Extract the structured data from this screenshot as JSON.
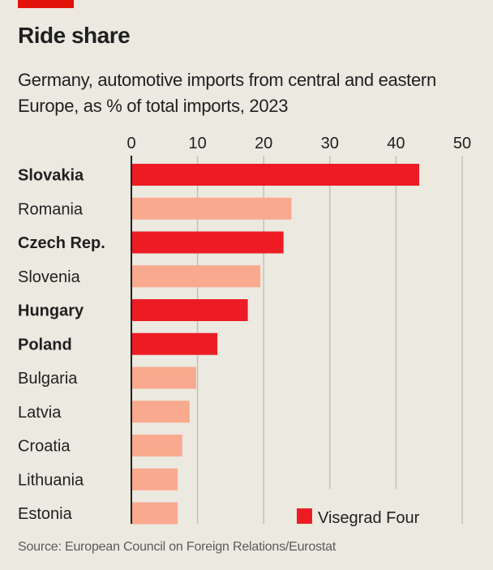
{
  "header": {
    "title": "Ride share",
    "subtitle": "Germany, automotive imports from central and eastern Europe, as % of total imports, 2023"
  },
  "footer": {
    "source": "Source: European Council on Foreign Relations/Eurostat"
  },
  "colors": {
    "accent_bar": "#e3120b",
    "highlight": "#ed1c24",
    "other": "#f9a98e",
    "background": "#ebe9e0",
    "grid": "#c3c1b8",
    "axis": "#1f1f1f"
  },
  "chart_data": {
    "type": "bar",
    "orientation": "horizontal",
    "title": "Ride share",
    "subtitle": "Germany, automotive imports from central and eastern Europe, as % of total imports, 2023",
    "xlabel": "",
    "ylabel": "",
    "xlim": [
      0,
      50
    ],
    "xticks": [
      0,
      10,
      20,
      30,
      40,
      50
    ],
    "xtick_labels": [
      "0",
      "10",
      "20",
      "30",
      "40",
      "50"
    ],
    "x_axis_position": "top",
    "grid": true,
    "categories": [
      "Slovakia",
      "Romania",
      "Czech Rep.",
      "Slovenia",
      "Hungary",
      "Poland",
      "Bulgaria",
      "Latvia",
      "Croatia",
      "Lithuania",
      "Estonia"
    ],
    "values": [
      43.5,
      24.2,
      23.0,
      19.5,
      17.6,
      13.0,
      9.8,
      8.8,
      7.7,
      7.0,
      7.0
    ],
    "visegrad_four": [
      true,
      false,
      true,
      false,
      true,
      true,
      false,
      false,
      false,
      false,
      false
    ],
    "legend": {
      "entries": [
        {
          "label": "Visegrad Four",
          "color": "#ed1c24"
        }
      ],
      "placement": "bottom-right"
    }
  }
}
